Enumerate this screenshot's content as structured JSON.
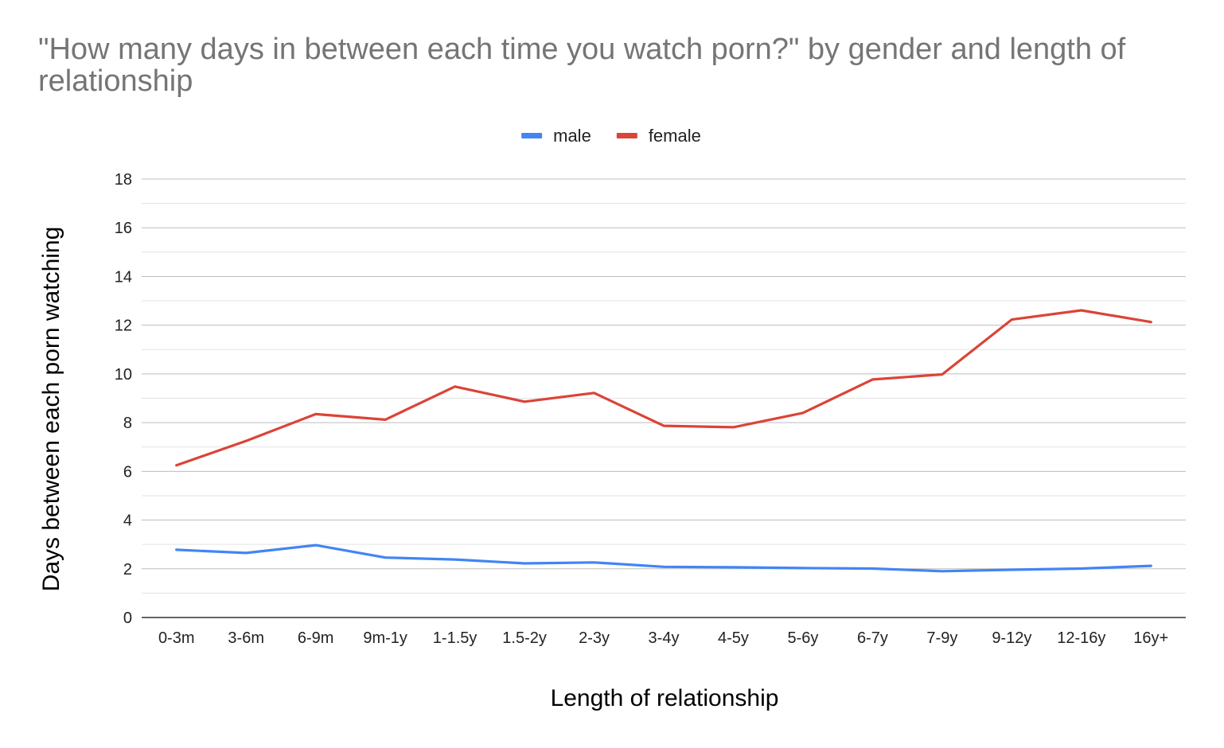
{
  "chart_data": {
    "type": "line",
    "title": "\"How many days in between each time you watch porn?\" by gender and length of relationship",
    "xlabel": "Length of relationship",
    "ylabel": "Days between each porn watching",
    "categories": [
      "0-3m",
      "3-6m",
      "6-9m",
      "9m-1y",
      "1-1.5y",
      "1.5-2y",
      "2-3y",
      "3-4y",
      "4-5y",
      "5-6y",
      "6-7y",
      "7-9y",
      "9-12y",
      "12-16y",
      "16y+"
    ],
    "ylim": [
      0,
      18
    ],
    "yticks": [
      "0",
      "2",
      "4",
      "6",
      "8",
      "10",
      "12",
      "14",
      "16",
      "18"
    ],
    "minor_gridlines": true,
    "legend_position": "top-center",
    "series": [
      {
        "name": "male",
        "color": "#4285f4",
        "values": [
          2.78,
          2.65,
          2.97,
          2.46,
          2.38,
          2.22,
          2.26,
          2.08,
          2.06,
          2.03,
          2.01,
          1.9,
          1.96,
          2.01,
          2.12
        ]
      },
      {
        "name": "female",
        "color": "#db4437",
        "values": [
          6.25,
          7.25,
          8.35,
          8.12,
          9.48,
          8.86,
          9.22,
          7.87,
          7.81,
          8.4,
          9.77,
          9.98,
          12.23,
          12.61,
          12.13
        ]
      }
    ]
  }
}
